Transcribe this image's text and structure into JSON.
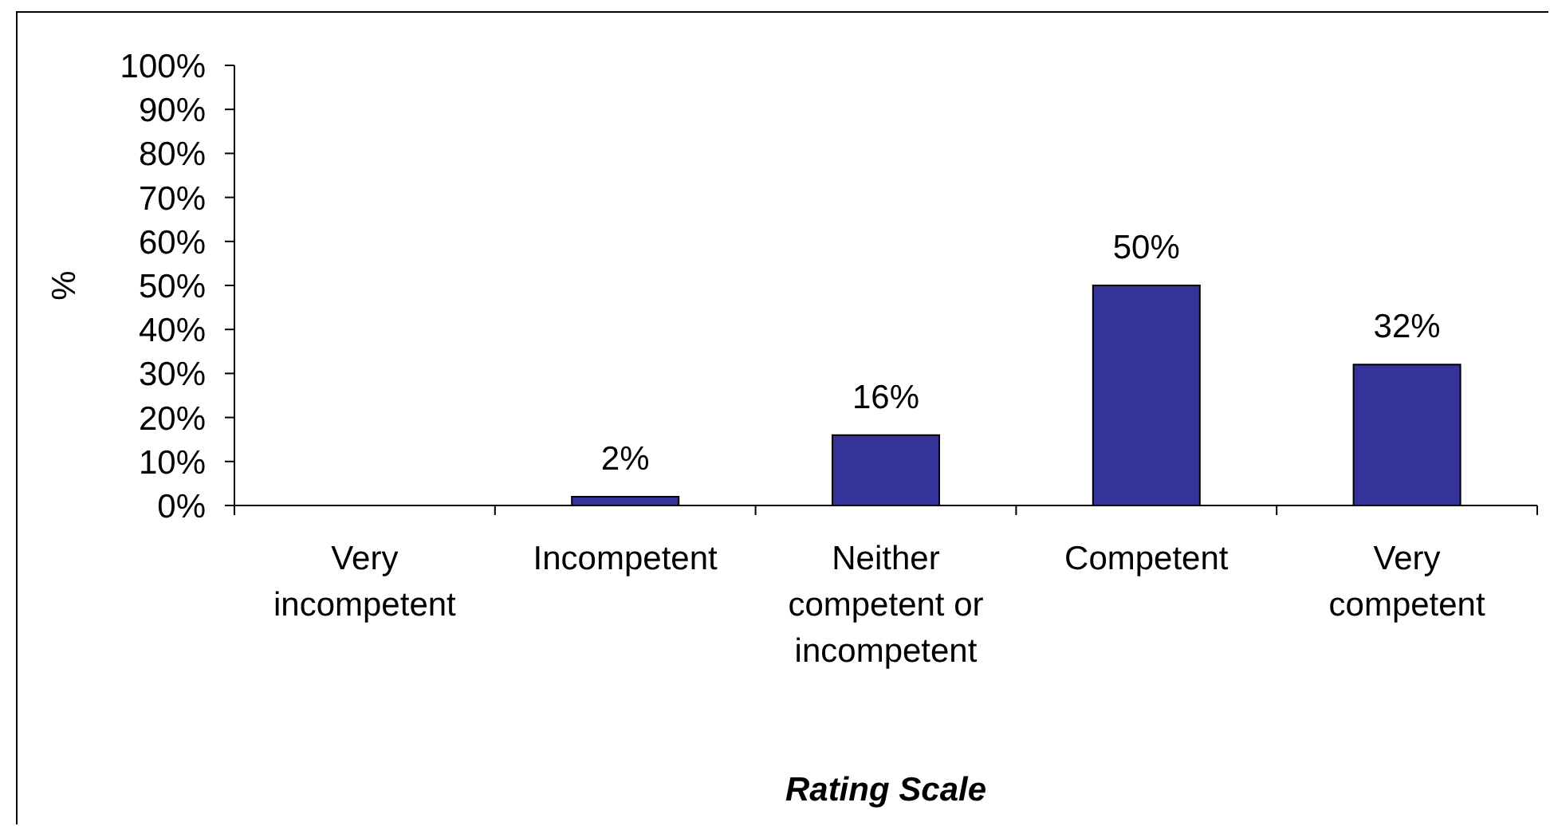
{
  "chart_data": {
    "type": "bar",
    "categories": [
      "Very incompetent",
      "Incompetent",
      "Neither competent or incompetent",
      "Competent",
      "Very competent"
    ],
    "values": [
      0,
      2,
      16,
      50,
      32
    ],
    "value_labels": [
      null,
      "2%",
      "16%",
      "50%",
      "32%"
    ],
    "color": "#333399",
    "xlabel": "Rating Scale",
    "ylabel": "%",
    "ylim": [
      0,
      100
    ],
    "yticks": [
      {
        "value": 0,
        "label": "0%"
      },
      {
        "value": 10,
        "label": "10%"
      },
      {
        "value": 20,
        "label": "20%"
      },
      {
        "value": 30,
        "label": "30%"
      },
      {
        "value": 40,
        "label": "40%"
      },
      {
        "value": 50,
        "label": "50%"
      },
      {
        "value": 60,
        "label": "60%"
      },
      {
        "value": 70,
        "label": "70%"
      },
      {
        "value": 80,
        "label": "80%"
      },
      {
        "value": 90,
        "label": "90%"
      },
      {
        "value": 100,
        "label": "100%"
      }
    ]
  }
}
